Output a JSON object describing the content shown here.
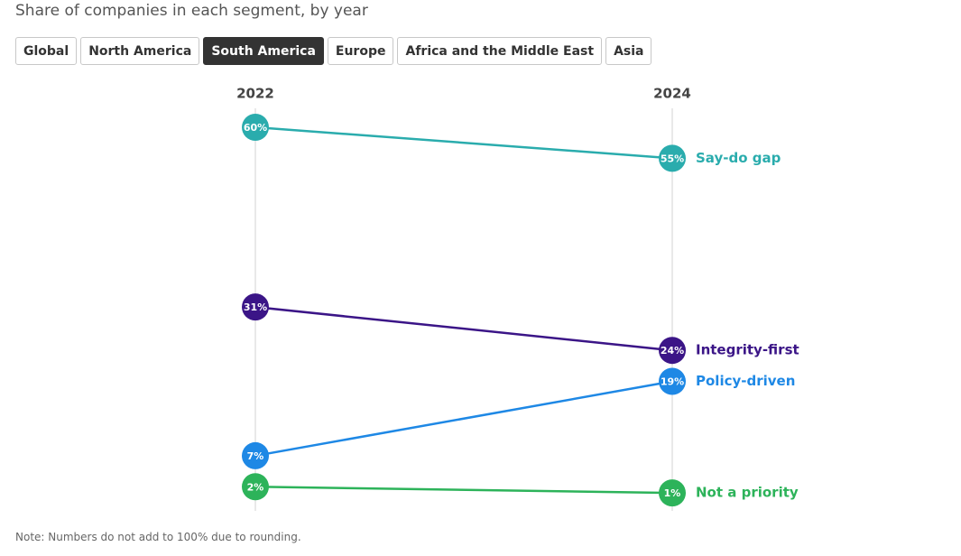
{
  "chart_data": {
    "type": "slope",
    "subtitle": "Share of companies in each segment, by year",
    "filters": [
      "Global",
      "North America",
      "South America",
      "Europe",
      "Africa and the Middle East",
      "Asia"
    ],
    "selected_filter": "South America",
    "categories": [
      "2022",
      "2024"
    ],
    "ylim": [
      0,
      60
    ],
    "series": [
      {
        "name": "Say-do gap",
        "color": "#2aacad",
        "values": [
          60,
          55
        ],
        "value_labels": [
          "60%",
          "55%"
        ]
      },
      {
        "name": "Integrity-first",
        "color": "#3b1587",
        "values": [
          31,
          24
        ],
        "value_labels": [
          "31%",
          "24%"
        ]
      },
      {
        "name": "Policy-driven",
        "color": "#1e88e5",
        "values": [
          7,
          19
        ],
        "value_labels": [
          "7%",
          "19%"
        ]
      },
      {
        "name": "Not a priority",
        "color": "#2db35a",
        "values": [
          2,
          1
        ],
        "value_labels": [
          "2%",
          "1%"
        ]
      }
    ],
    "note": "Note: Numbers do not add to 100% due to rounding."
  }
}
